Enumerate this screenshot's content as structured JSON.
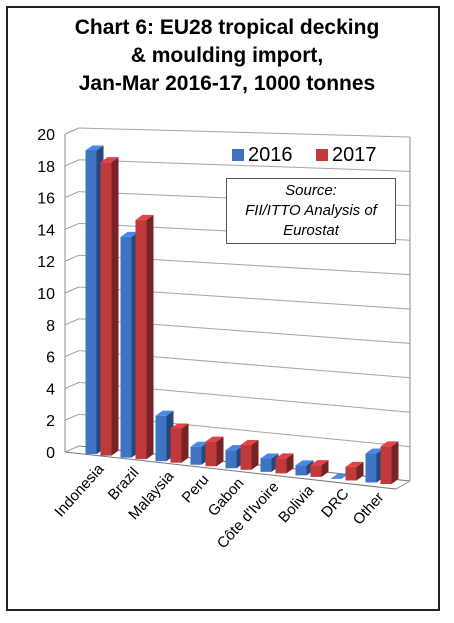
{
  "chart_data": {
    "type": "bar",
    "title": "Chart 6: EU28 tropical decking\n& moulding import,\nJan-Mar 2016-17, 1000 tonnes",
    "categories": [
      "Indonesia",
      "Brazil",
      "Malaysia",
      "Peru",
      "Gabon",
      "Côte d'Ivoire",
      "Bolivia",
      "DRC",
      "Other"
    ],
    "series": [
      {
        "name": "2016",
        "color": "#3f73c4",
        "values": [
          19.0,
          13.7,
          2.8,
          1.1,
          1.1,
          0.8,
          0.6,
          0.0,
          1.7
        ]
      },
      {
        "name": "2017",
        "color": "#c0393b",
        "values": [
          18.3,
          14.8,
          2.1,
          1.5,
          1.5,
          0.9,
          0.7,
          0.8,
          2.2
        ]
      }
    ],
    "ylim": [
      0,
      20
    ],
    "yticks": [
      0,
      2,
      4,
      6,
      8,
      10,
      12,
      14,
      16,
      18,
      20
    ],
    "grid": true,
    "legend": "top-right",
    "annotation": "Source:\nFII/ITTO Analysis of\nEurostat"
  }
}
